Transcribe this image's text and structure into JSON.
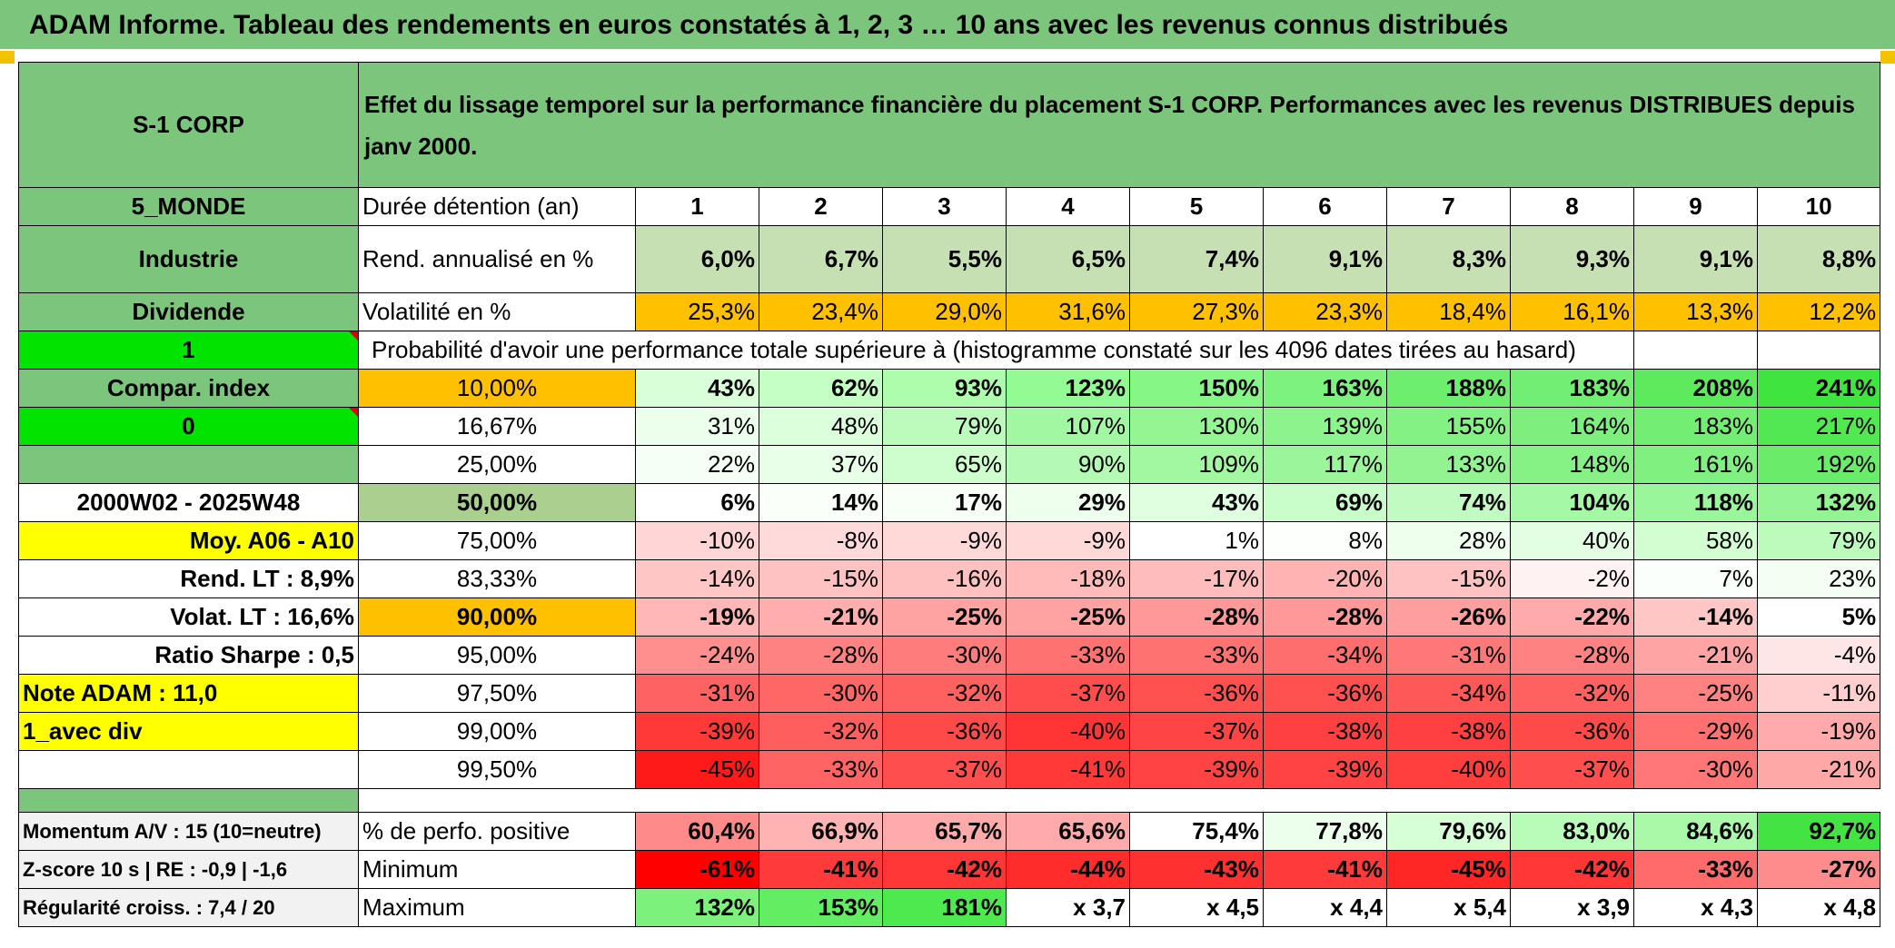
{
  "title": "ADAM Informe. Tableau des rendements en euros constatés à 1, 2, 3 … 10 ans avec les revenus connus distribués",
  "header": {
    "fund_name": "S-1 CORP",
    "description": "Effet du lissage temporel sur la performance financière du placement S-1 CORP. Performances avec les revenus DISTRIBUES depuis janv 2000."
  },
  "left_panel": {
    "region": "5_MONDE",
    "sector": "Industrie",
    "income_type": "Dividende",
    "selector_1": "1",
    "compar_index": "Compar. index",
    "selector_0": "0",
    "period": "2000W02 - 2025W48",
    "moy": "Moy. A06 - A10",
    "rend_lt": "Rend. LT :   8,9%",
    "volat_lt": "Volat. LT :   16,6%",
    "sharpe": "Ratio Sharpe :   0,5",
    "note_adam": "Note ADAM : 11,0",
    "div_mode": "1_avec div",
    "momentum": "Momentum A/V : 15 (10=neutre)",
    "zscore": "Z-score 10 s | RE : -0,9 | -1,6",
    "regularite": "Régularité croiss. : 7,4 / 20"
  },
  "table": {
    "duration_label": "Durée détention (an)",
    "years": [
      "1",
      "2",
      "3",
      "4",
      "5",
      "6",
      "7",
      "8",
      "9",
      "10"
    ],
    "rend_label": "Rend. annualisé en %",
    "rend_values": [
      "6,0%",
      "6,7%",
      "5,5%",
      "6,5%",
      "7,4%",
      "9,1%",
      "8,3%",
      "9,3%",
      "9,1%",
      "8,8%"
    ],
    "vol_label": "Volatilité en %",
    "vol_values": [
      "25,3%",
      "23,4%",
      "29,0%",
      "31,6%",
      "27,3%",
      "23,3%",
      "18,4%",
      "16,1%",
      "13,3%",
      "12,2%"
    ],
    "prob_label": "Probabilité d'avoir une performance totale supérieure à (histogramme constaté sur les 4096 dates tirées au hasard)",
    "prob_rows": [
      {
        "p": "10,00%",
        "v": [
          "43%",
          "62%",
          "93%",
          "123%",
          "150%",
          "163%",
          "188%",
          "183%",
          "208%",
          "241%"
        ],
        "bg": [
          "#d9ffd9",
          "#c4ffc4",
          "#adfdad",
          "#94fa94",
          "#86f686",
          "#7ef27e",
          "#6eee6e",
          "#72ef72",
          "#5deb5d",
          "#3fe43f"
        ]
      },
      {
        "p": "16,67%",
        "v": [
          "31%",
          "48%",
          "79%",
          "107%",
          "130%",
          "139%",
          "155%",
          "164%",
          "183%",
          "217%"
        ],
        "bg": [
          "#ecffec",
          "#daffda",
          "#bdfbbd",
          "#a2f8a2",
          "#93f693",
          "#8df48d",
          "#83f183",
          "#7eef7e",
          "#73ee73",
          "#52e852"
        ]
      },
      {
        "p": "25,00%",
        "v": [
          "22%",
          "37%",
          "65%",
          "90%",
          "109%",
          "117%",
          "133%",
          "148%",
          "161%",
          "192%"
        ],
        "bg": [
          "#f6fff6",
          "#e8ffe8",
          "#cefece",
          "#b4fab4",
          "#a1f8a1",
          "#9bf69b",
          "#91f491",
          "#86f286",
          "#80f080",
          "#6aec6a"
        ]
      },
      {
        "p": "50,00%",
        "v": [
          "6%",
          "14%",
          "17%",
          "29%",
          "43%",
          "69%",
          "74%",
          "104%",
          "118%",
          "132%"
        ],
        "bg": [
          "#ffffff",
          "#fafffa",
          "#f7fff7",
          "#eeffee",
          "#e0ffe0",
          "#c8fcc8",
          "#c2fbc2",
          "#a5f8a5",
          "#9af69a",
          "#92f492"
        ]
      },
      {
        "p": "75,00%",
        "v": [
          "-10%",
          "-8%",
          "-9%",
          "-9%",
          "1%",
          "8%",
          "28%",
          "40%",
          "58%",
          "79%"
        ],
        "bg": [
          "#ffd5d5",
          "#ffdada",
          "#ffd8d8",
          "#ffd8d8",
          "#ffffff",
          "#fcfffc",
          "#eeffee",
          "#e3ffe3",
          "#d2fed2",
          "#bdfbbd"
        ]
      },
      {
        "p": "83,33%",
        "v": [
          "-14%",
          "-15%",
          "-16%",
          "-18%",
          "-17%",
          "-20%",
          "-15%",
          "-2%",
          "7%",
          "23%"
        ],
        "bg": [
          "#ffc6c6",
          "#ffc2c2",
          "#ffc0c0",
          "#ffbaba",
          "#ffbcbc",
          "#ffb3b3",
          "#ffc2c2",
          "#fff2f2",
          "#fbfffb",
          "#f3fff3"
        ]
      },
      {
        "p": "90,00%",
        "v": [
          "-19%",
          "-21%",
          "-25%",
          "-25%",
          "-28%",
          "-28%",
          "-26%",
          "-22%",
          "-14%",
          "5%"
        ],
        "bg": [
          "#ffb6b6",
          "#ffaeae",
          "#ffa2a2",
          "#ffa2a2",
          "#ff9898",
          "#ff9898",
          "#ff9e9e",
          "#ffaaaa",
          "#ffc6c6",
          "#ffffff"
        ]
      },
      {
        "p": "95,00%",
        "v": [
          "-24%",
          "-28%",
          "-30%",
          "-33%",
          "-33%",
          "-34%",
          "-31%",
          "-28%",
          "-21%",
          "-4%"
        ],
        "bg": [
          "#ff8e8e",
          "#ff8282",
          "#ff7c7c",
          "#ff7272",
          "#ff7272",
          "#ff6e6e",
          "#ff7878",
          "#ff8282",
          "#ffa4a4",
          "#ffe6e6"
        ]
      },
      {
        "p": "97,50%",
        "v": [
          "-31%",
          "-30%",
          "-32%",
          "-37%",
          "-36%",
          "-36%",
          "-34%",
          "-32%",
          "-25%",
          "-11%"
        ],
        "bg": [
          "#ff6262",
          "#ff6666",
          "#ff6060",
          "#ff4c4c",
          "#ff5050",
          "#ff5050",
          "#ff5858",
          "#ff6060",
          "#ff8282",
          "#ffcece"
        ]
      },
      {
        "p": "99,00%",
        "v": [
          "-39%",
          "-32%",
          "-36%",
          "-40%",
          "-37%",
          "-38%",
          "-38%",
          "-36%",
          "-29%",
          "-19%"
        ],
        "bg": [
          "#ff3838",
          "#ff5e5e",
          "#ff4a4a",
          "#ff3434",
          "#ff4444",
          "#ff4040",
          "#ff4040",
          "#ff4a4a",
          "#ff7070",
          "#ffaaaa"
        ]
      },
      {
        "p": "99,50%",
        "v": [
          "-45%",
          "-33%",
          "-37%",
          "-41%",
          "-39%",
          "-39%",
          "-40%",
          "-37%",
          "-30%",
          "-21%"
        ],
        "bg": [
          "#ff1a1a",
          "#ff6464",
          "#ff4e4e",
          "#ff3838",
          "#ff4242",
          "#ff4242",
          "#ff3e3e",
          "#ff4e4e",
          "#ff7676",
          "#ffa8a8"
        ]
      }
    ],
    "pos_label": "% de perfo. positive",
    "pos_values": [
      "60,4%",
      "66,9%",
      "65,7%",
      "65,6%",
      "75,4%",
      "77,8%",
      "79,6%",
      "83,0%",
      "84,6%",
      "92,7%"
    ],
    "pos_bg": [
      "#ff8a8a",
      "#ffb3b3",
      "#ffaaaa",
      "#ffaaaa",
      "#ffffff",
      "#ecffec",
      "#d6ffd6",
      "#b9fcb9",
      "#a9f9a9",
      "#44e344"
    ],
    "min_label": "Minimum",
    "min_values": [
      "-61%",
      "-41%",
      "-42%",
      "-44%",
      "-43%",
      "-41%",
      "-45%",
      "-42%",
      "-33%",
      "-27%"
    ],
    "min_bg": [
      "#ff0000",
      "#ff3a3a",
      "#ff3636",
      "#ff2c2c",
      "#ff3030",
      "#ff3a3a",
      "#ff2626",
      "#ff3636",
      "#ff6a6a",
      "#ff8c8c"
    ],
    "max_label": "Maximum",
    "max_values": [
      "132%",
      "153%",
      "181%",
      "x 3,7",
      "x 4,5",
      "x 4,4",
      "x 5,4",
      "x 3,9",
      "x 4,3",
      "x 4,8"
    ],
    "max_bg": [
      "#7cf27c",
      "#63ed63",
      "#4ee94e",
      "#ffffff",
      "#ffffff",
      "#ffffff",
      "#ffffff",
      "#ffffff",
      "#ffffff",
      "#ffffff"
    ]
  }
}
